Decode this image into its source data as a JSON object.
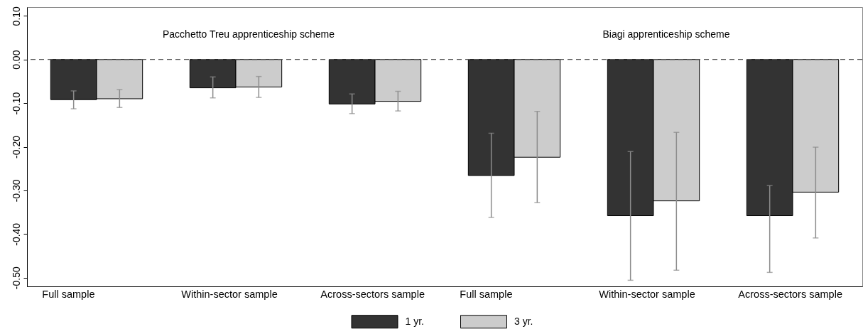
{
  "chart_data": {
    "type": "bar",
    "categories": [
      "Full sample",
      "Within-sector sample",
      "Across-sectors sample",
      "Full sample",
      "Within-sector sample",
      "Across-sectors sample"
    ],
    "series": [
      {
        "name": "1 yr.",
        "color": "#333333",
        "values": [
          -0.092,
          -0.065,
          -0.102,
          -0.266,
          -0.358,
          -0.358
        ],
        "errors": [
          [
            -0.113,
            -0.072
          ],
          [
            -0.088,
            -0.04
          ],
          [
            -0.124,
            -0.079
          ],
          [
            -0.362,
            -0.169
          ],
          [
            -0.506,
            -0.211
          ],
          [
            -0.488,
            -0.289
          ]
        ]
      },
      {
        "name": "3 yr.",
        "color": "#cccccc",
        "values": [
          -0.09,
          -0.063,
          -0.096,
          -0.224,
          -0.324,
          -0.304
        ],
        "errors": [
          [
            -0.11,
            -0.069
          ],
          [
            -0.087,
            -0.039
          ],
          [
            -0.118,
            -0.073
          ],
          [
            -0.328,
            -0.119
          ],
          [
            -0.483,
            -0.167
          ],
          [
            -0.409,
            -0.201
          ]
        ]
      }
    ],
    "ylim": [
      -0.52,
      0.12
    ],
    "yticks": [
      {
        "value": 0.1,
        "label": "0.10"
      },
      {
        "value": 0,
        "label": "0.00"
      },
      {
        "value": -0.1,
        "label": "-0.10"
      },
      {
        "value": -0.2,
        "label": "-0.20"
      },
      {
        "value": -0.3,
        "label": "-0.30"
      },
      {
        "value": -0.4,
        "label": "-0.40"
      },
      {
        "value": -0.5,
        "label": "-0.50"
      }
    ],
    "ref_lines": [
      {
        "axis": "y",
        "value": 0,
        "color": "#555555",
        "line_style": "dashed"
      }
    ],
    "annotations": [
      "Pacchetto Treu apprenticeship scheme",
      "Biagi apprenticeship scheme"
    ],
    "legend": "bottom",
    "grid": false
  }
}
